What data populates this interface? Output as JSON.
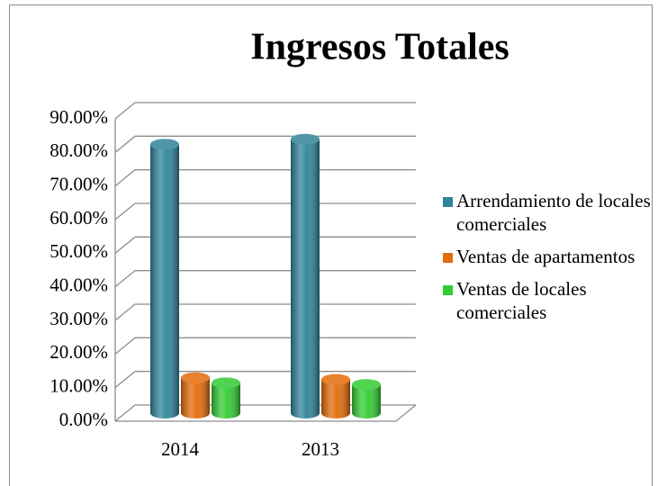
{
  "chart_data": {
    "type": "bar3d",
    "title": "Ingresos Totales",
    "categories": [
      "2014",
      "2013"
    ],
    "series": [
      {
        "name": "Arrendamiento de locales comerciales",
        "color": "#31849b",
        "values": [
          80,
          81.5
        ]
      },
      {
        "name": "Ventas de apartamentos",
        "color": "#e46c0a",
        "values": [
          10.5,
          10
        ]
      },
      {
        "name": "Ventas de locales comerciales",
        "color": "#33cc33",
        "values": [
          9,
          8.5
        ]
      }
    ],
    "ylim": [
      0,
      90
    ],
    "yticks": [
      {
        "value": 0,
        "label": "0.00%"
      },
      {
        "value": 10,
        "label": "10.00%"
      },
      {
        "value": 20,
        "label": "20.00%"
      },
      {
        "value": 30,
        "label": "30.00%"
      },
      {
        "value": 40,
        "label": "40.00%"
      },
      {
        "value": 50,
        "label": "50.00%"
      },
      {
        "value": 60,
        "label": "60.00%"
      },
      {
        "value": 70,
        "label": "70.00%"
      },
      {
        "value": 80,
        "label": "80.00%"
      },
      {
        "value": 90,
        "label": "90.00%"
      }
    ],
    "grid": true,
    "legend": "right"
  }
}
